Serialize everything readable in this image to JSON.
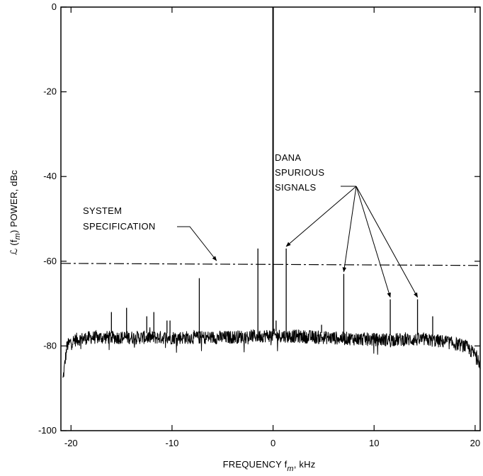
{
  "chart_data": {
    "type": "line",
    "title": "",
    "xlabel": "FREQUENCY f",
    "xlabel_sub": "m",
    "xlabel_unit": ", kHz",
    "ylabel": "ℒ (f",
    "ylabel_sub": "m",
    "ylabel_unit": ") POWER, dBc",
    "xlim": [
      -21,
      20.5
    ],
    "ylim": [
      -100,
      0
    ],
    "x_ticks": [
      -20,
      -10,
      0,
      10,
      20
    ],
    "x_tick_labels": [
      "-20",
      "-10",
      "0",
      "10",
      "20"
    ],
    "y_ticks": [
      0,
      -20,
      -40,
      -60,
      -80,
      -100
    ],
    "y_tick_labels": [
      "0",
      "-20",
      "-40",
      "-60",
      "-80",
      "-100"
    ],
    "grid": false,
    "legend": "none",
    "colors": {
      "line": "#000000"
    },
    "series": [
      {
        "noise_floor": {
          "x": [
            -20.8,
            -20.4,
            -20,
            -19.5,
            -18,
            -15,
            -10,
            -5,
            0,
            5,
            10,
            15,
            17,
            18,
            19,
            19.5,
            20,
            20.5
          ],
          "y": [
            -88,
            -80,
            -79,
            -78.5,
            -78,
            -78,
            -78,
            -78,
            -77.5,
            -78,
            -78.5,
            -78.5,
            -79,
            -79.5,
            -80,
            -81,
            -82,
            -84
          ]
        },
        "carrier": {
          "x": 0,
          "y": 0
        },
        "spurs": [
          {
            "x": -16.0,
            "y": -72
          },
          {
            "x": -14.5,
            "y": -71
          },
          {
            "x": -12.5,
            "y": -73
          },
          {
            "x": -11.8,
            "y": -72
          },
          {
            "x": -10.5,
            "y": -74
          },
          {
            "x": -10.2,
            "y": -74
          },
          {
            "x": -7.3,
            "y": -64
          },
          {
            "x": -1.5,
            "y": -57
          },
          {
            "x": 0.3,
            "y": -74
          },
          {
            "x": 1.3,
            "y": -57
          },
          {
            "x": 4.8,
            "y": -75
          },
          {
            "x": 7.0,
            "y": -63
          },
          {
            "x": 11.6,
            "y": -69
          },
          {
            "x": 14.3,
            "y": -69
          },
          {
            "x": 15.8,
            "y": -73
          }
        ]
      }
    ],
    "specification_line": {
      "y_start": -60.5,
      "y_end": -61
    },
    "annotations": {
      "spec_label": [
        "SYSTEM",
        "SPECIFICATION"
      ],
      "spur_label": [
        "DANA",
        "SPURIOUS",
        "SIGNALS"
      ],
      "spur_arrow_targets": [
        {
          "x": 1.3,
          "y": -57
        },
        {
          "x": 7.0,
          "y": -63
        },
        {
          "x": 11.6,
          "y": -69
        },
        {
          "x": 14.3,
          "y": -69
        }
      ],
      "spec_arrow_target": {
        "x": -5.6,
        "y": -60.2
      }
    }
  }
}
